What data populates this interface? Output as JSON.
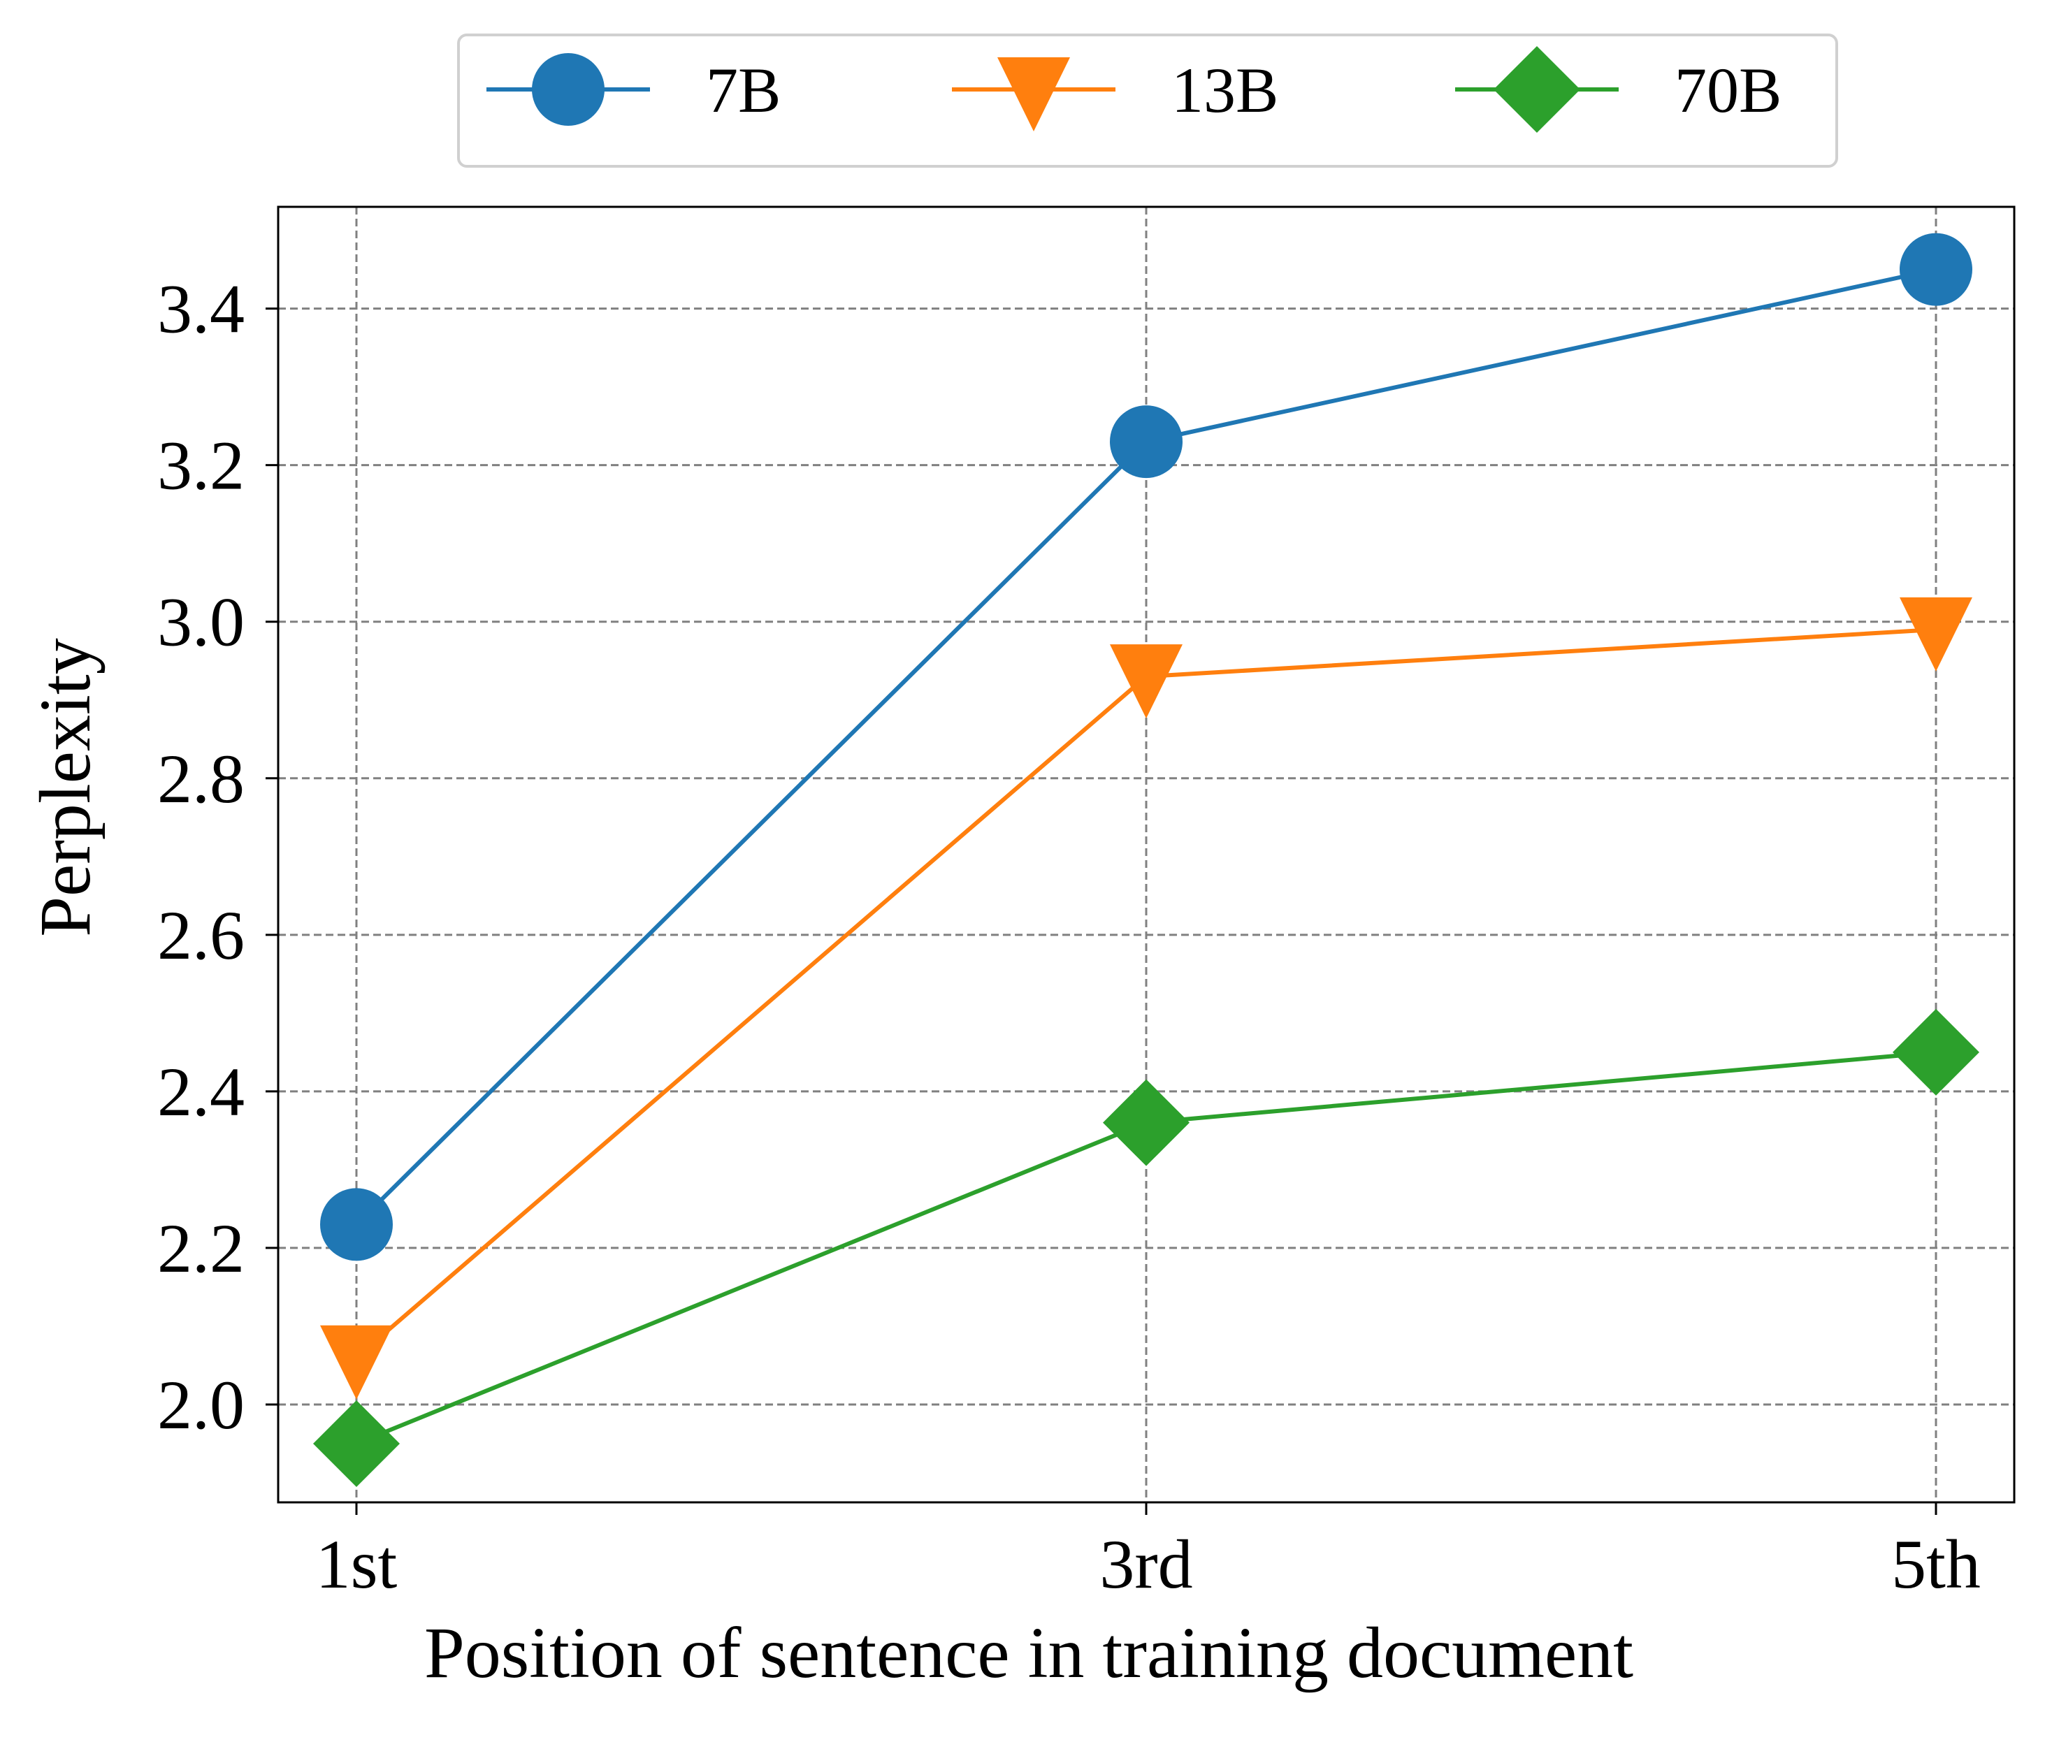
{
  "chart_data": {
    "type": "line",
    "title": "",
    "xlabel": "Position of sentence in training document",
    "ylabel": "Perplexity",
    "categories": [
      "1st",
      "3rd",
      "5th"
    ],
    "ylim": [
      1.875,
      3.53
    ],
    "yticks": [
      "2.0",
      "2.2",
      "2.4",
      "2.6",
      "2.8",
      "3.0",
      "3.2",
      "3.4"
    ],
    "grid": true,
    "legend_position": "top-center, above plot",
    "series": [
      {
        "name": "7B",
        "color": "#1f77b4",
        "marker": "circle",
        "values": [
          2.23,
          3.23,
          3.45
        ]
      },
      {
        "name": "13B",
        "color": "#ff7f0e",
        "marker": "triangle-down",
        "values": [
          2.06,
          2.93,
          2.99
        ]
      },
      {
        "name": "70B",
        "color": "#2ca02c",
        "marker": "diamond",
        "values": [
          1.95,
          2.36,
          2.45
        ]
      }
    ]
  }
}
